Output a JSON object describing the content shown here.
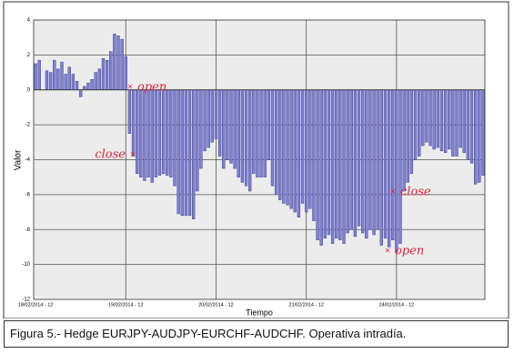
{
  "chart_data": {
    "type": "bar",
    "ylabel": "Valor",
    "xlabel": "Tiempo",
    "caption": "Figura 5.- Hedge EURJPY-AUDJPY-EURCHF-AUDCHF. Operativa intradía.",
    "annotations": [
      "open",
      "close",
      "close",
      "open"
    ],
    "annotation_color": "#e0203a",
    "color": "#8080d0",
    "grid": true,
    "ylim": [
      -12,
      4
    ],
    "yticks": [
      4,
      2,
      0,
      -2,
      -4,
      -6,
      -8,
      -10,
      -12
    ],
    "categories": [
      "18/02/2014 - 12",
      null,
      null,
      null,
      null,
      null,
      null,
      null,
      null,
      null,
      null,
      null,
      null,
      null,
      null,
      null,
      null,
      null,
      null,
      null,
      null,
      null,
      null,
      null,
      "19/02/2014 - 12",
      null,
      null,
      null,
      null,
      null,
      null,
      null,
      null,
      null,
      null,
      null,
      null,
      null,
      null,
      null,
      null,
      null,
      null,
      null,
      null,
      null,
      null,
      null,
      "20/02/2014 - 12",
      null,
      null,
      null,
      null,
      null,
      null,
      null,
      null,
      null,
      null,
      null,
      null,
      null,
      null,
      null,
      null,
      null,
      null,
      null,
      null,
      null,
      null,
      null,
      "21/02/2014 - 12",
      null,
      null,
      null,
      null,
      null,
      null,
      null,
      null,
      null,
      null,
      null,
      null,
      null,
      null,
      null,
      null,
      null,
      null,
      null,
      null,
      null,
      null,
      null,
      "24/02/2014 - 12",
      null,
      null,
      null,
      null,
      null,
      null,
      null,
      null,
      null,
      null,
      null,
      null,
      null,
      null,
      null,
      null,
      null,
      null,
      null,
      null,
      null,
      null,
      null
    ],
    "values": [
      1.5,
      1.7,
      0,
      1.1,
      1.0,
      1.7,
      1.2,
      1.6,
      0.9,
      1.3,
      0.9,
      0.5,
      -0.4,
      0.2,
      0.4,
      0.6,
      1.0,
      1.2,
      1.8,
      1.7,
      2.2,
      3.2,
      3.1,
      2.9,
      1.9,
      -2.5,
      -3.8,
      -4.8,
      -5.0,
      -5.2,
      -5.0,
      -5.3,
      -5.0,
      -4.9,
      -4.8,
      -4.9,
      -5.0,
      -5.5,
      -7.1,
      -7.2,
      -7.2,
      -7.2,
      -7.4,
      -5.8,
      -4.5,
      -3.5,
      -3.3,
      -3.0,
      -2.8,
      -3.8,
      -4.5,
      -4.0,
      -4.2,
      -4.5,
      -5.0,
      -5.3,
      -5.5,
      -5.8,
      -4.8,
      -5.0,
      -5.0,
      -5.0,
      -4.0,
      -5.5,
      -6.0,
      -6.3,
      -6.5,
      -6.6,
      -6.8,
      -7.0,
      -7.3,
      -6.5,
      -7.0,
      -6.8,
      -7.5,
      -8.6,
      -8.9,
      -8.5,
      -8.3,
      -8.8,
      -8.5,
      -8.6,
      -8.8,
      -8.2,
      -8.0,
      -8.4,
      -7.8,
      -8.2,
      -8.5,
      -8.0,
      -8.3,
      -8.0,
      -8.9,
      -8.5,
      -9.0,
      -8.6,
      -9.3,
      -8.8,
      -5.8,
      -5.3,
      -4.8,
      -4.0,
      -3.8,
      -3.2,
      -3.0,
      -3.2,
      -3.4,
      -3.3,
      -3.5,
      -3.6,
      -3.4,
      -3.8,
      -3.8,
      -3.3,
      -3.6,
      -4.0,
      -4.2,
      -5.4,
      -5.3,
      -4.9
    ]
  }
}
